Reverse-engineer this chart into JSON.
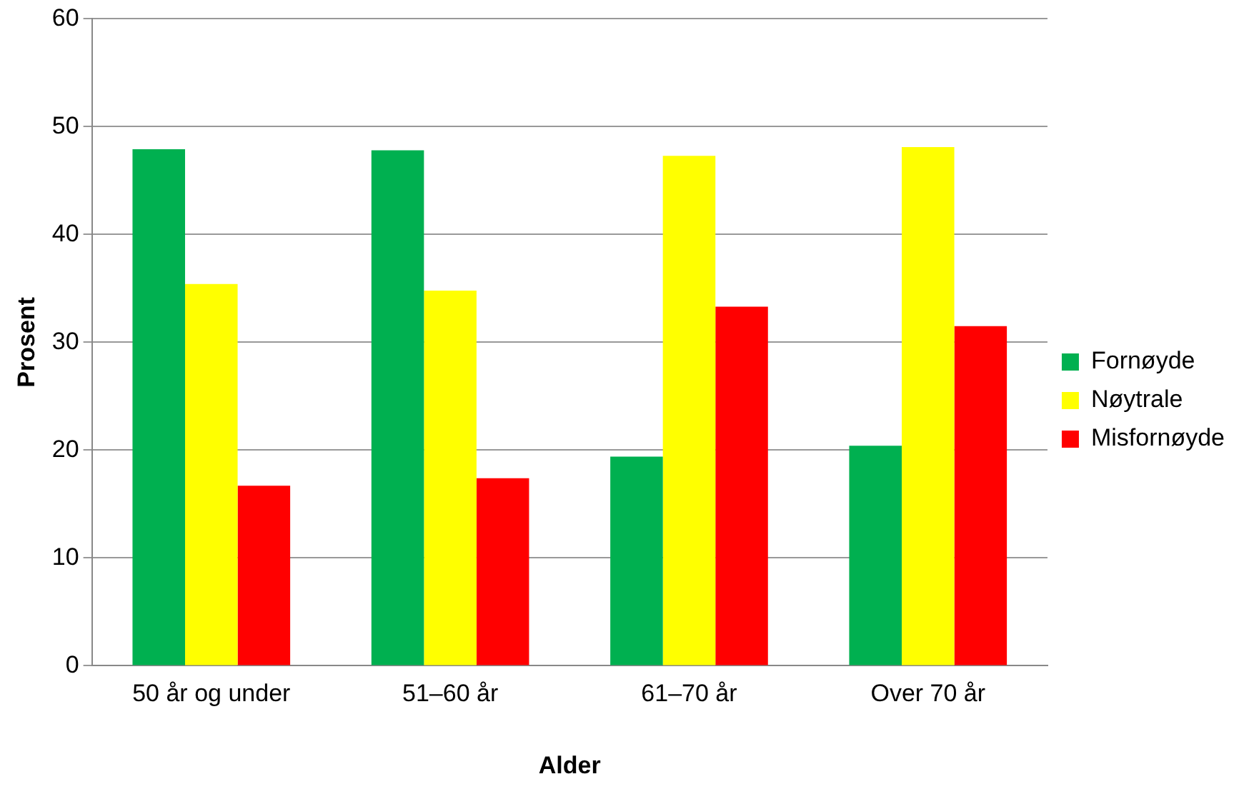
{
  "chart_data": {
    "type": "bar",
    "xlabel": "Alder",
    "ylabel": "Prosent",
    "categories": [
      "50 år og under",
      "51–60 år",
      "61–70 år",
      "Over 70 år"
    ],
    "series": [
      {
        "name": "Fornøyde",
        "color": "#00b050",
        "values": [
          47.9,
          47.8,
          19.4,
          20.4
        ]
      },
      {
        "name": "Nøytrale",
        "color": "#ffff00",
        "values": [
          35.4,
          34.8,
          47.3,
          48.1
        ]
      },
      {
        "name": "Misfornøyde",
        "color": "#ff0000",
        "values": [
          16.7,
          17.4,
          33.3,
          31.5
        ]
      }
    ],
    "ylim": [
      0,
      60
    ],
    "yticks": [
      0,
      10,
      20,
      30,
      40,
      50,
      60
    ],
    "grid": "y",
    "legend": "right"
  }
}
